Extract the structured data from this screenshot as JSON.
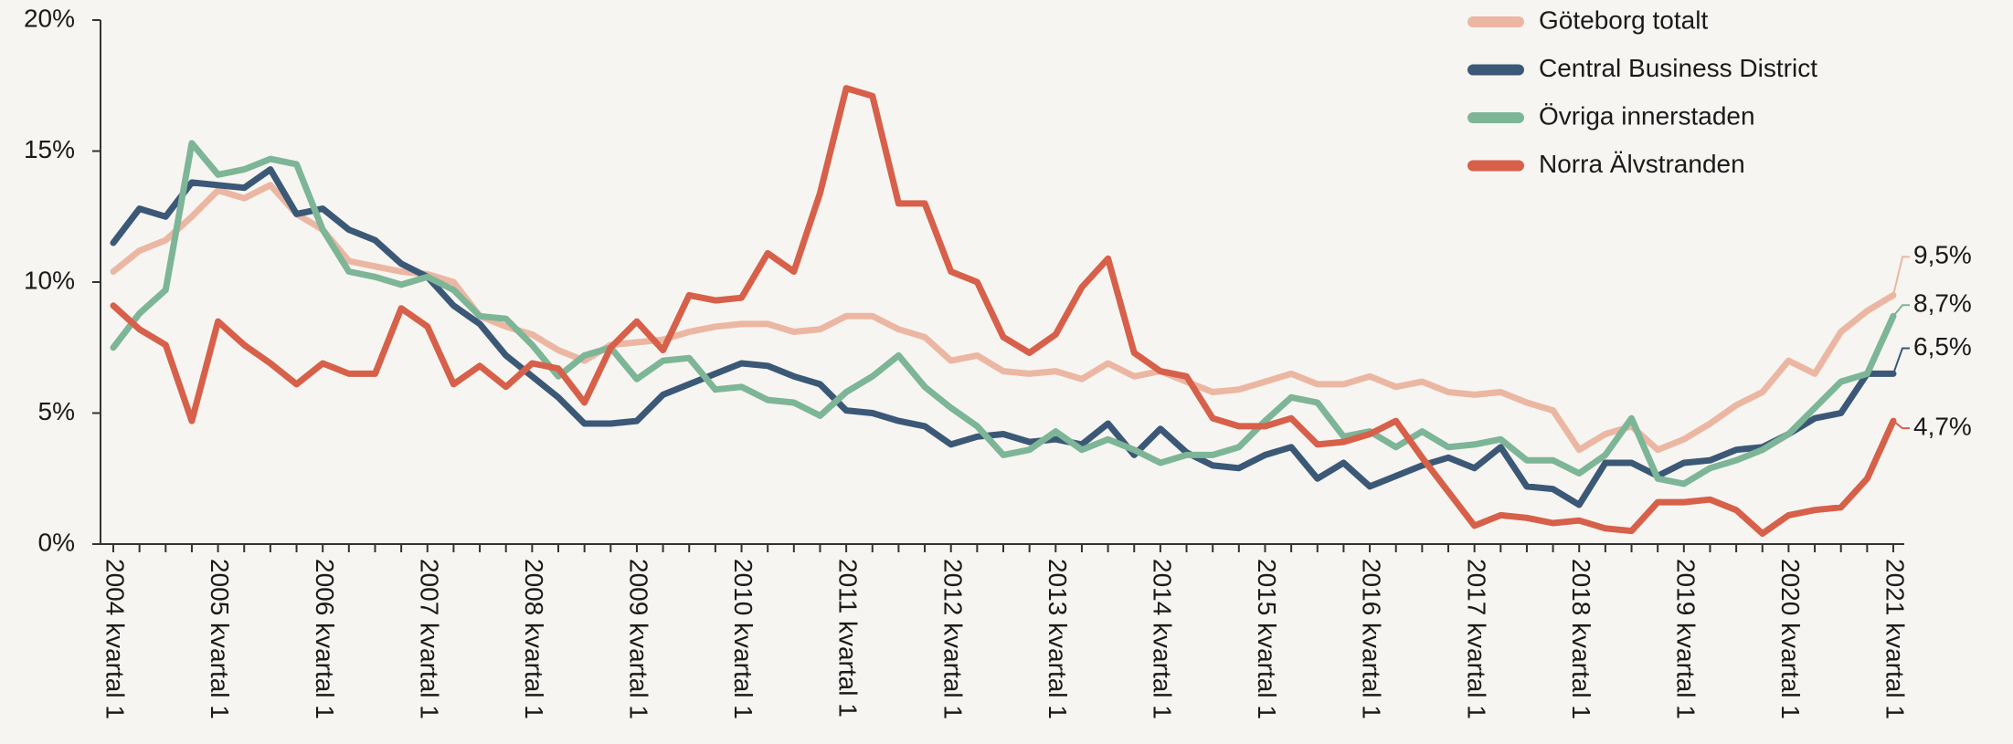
{
  "chart_data": {
    "type": "line",
    "categories": [
      "2004 kvartal 1",
      null,
      null,
      null,
      "2005 kvartal 1",
      null,
      null,
      null,
      "2006 kvartal 1",
      null,
      null,
      null,
      "2007 kvartal 1",
      null,
      null,
      null,
      "2008 kvartal 1",
      null,
      null,
      null,
      "2009 kvartal 1",
      null,
      null,
      null,
      "2010 kvartal 1",
      null,
      null,
      null,
      "2011 kvartal 1",
      null,
      null,
      null,
      "2012 kvartal 1",
      null,
      null,
      null,
      "2013 kvartal 1",
      null,
      null,
      null,
      "2014 kvartal 1",
      null,
      null,
      null,
      "2015 kvartal 1",
      null,
      null,
      null,
      "2016 kvartal 1",
      null,
      null,
      null,
      "2017 kvartal 1",
      null,
      null,
      null,
      "2018 kvartal 1",
      null,
      null,
      null,
      "2019 kvartal 1",
      null,
      null,
      null,
      "2020 kvartal 1",
      null,
      null,
      null,
      "2021 kvartal 1"
    ],
    "series": [
      {
        "name": "Göteborg totalt",
        "color": "#ebb7a3",
        "values": [
          10.4,
          11.2,
          11.6,
          12.5,
          13.5,
          13.2,
          13.7,
          12.6,
          12.0,
          10.8,
          10.6,
          10.4,
          10.3,
          10.0,
          8.7,
          8.3,
          8.0,
          7.4,
          7.0,
          7.6,
          7.7,
          7.8,
          8.1,
          8.3,
          8.4,
          8.4,
          8.1,
          8.2,
          8.7,
          8.7,
          8.2,
          7.9,
          7.0,
          7.2,
          6.6,
          6.5,
          6.6,
          6.3,
          6.9,
          6.4,
          6.6,
          6.2,
          5.8,
          5.9,
          6.2,
          6.5,
          6.1,
          6.1,
          6.4,
          6.0,
          6.2,
          5.8,
          5.7,
          5.8,
          5.4,
          5.1,
          3.6,
          4.2,
          4.5,
          3.6,
          4.0,
          4.6,
          5.3,
          5.8,
          7.0,
          6.5,
          8.1,
          8.9,
          9.5
        ],
        "value_labels": [
          null,
          null,
          null,
          null,
          null,
          null,
          null,
          null,
          null,
          null,
          null,
          null,
          null,
          null,
          null,
          null,
          null,
          null,
          null,
          null,
          null,
          null,
          null,
          null,
          null,
          null,
          null,
          null,
          null,
          null,
          null,
          null,
          null,
          null,
          null,
          null,
          null,
          null,
          null,
          null,
          null,
          null,
          null,
          null,
          null,
          null,
          null,
          null,
          null,
          null,
          null,
          null,
          null,
          null,
          null,
          null,
          null,
          null,
          null,
          null,
          null,
          null,
          null,
          null,
          null,
          null,
          null,
          null,
          "9,5%"
        ]
      },
      {
        "name": "Central Business District",
        "color": "#3b5877",
        "values": [
          11.5,
          12.8,
          12.5,
          13.8,
          13.7,
          13.6,
          14.3,
          12.6,
          12.8,
          12.0,
          11.6,
          10.7,
          10.2,
          9.1,
          8.4,
          7.2,
          6.4,
          5.6,
          4.6,
          4.6,
          4.7,
          5.7,
          6.1,
          6.5,
          6.9,
          6.8,
          6.4,
          6.1,
          5.1,
          5.0,
          4.7,
          4.5,
          3.8,
          4.1,
          4.2,
          3.9,
          4.0,
          3.8,
          4.6,
          3.4,
          4.4,
          3.5,
          3.0,
          2.9,
          3.4,
          3.7,
          2.5,
          3.1,
          2.2,
          2.6,
          3.0,
          3.3,
          2.9,
          3.7,
          2.2,
          2.1,
          1.5,
          3.1,
          3.1,
          2.6,
          3.1,
          3.2,
          3.6,
          3.7,
          4.2,
          4.8,
          5.0,
          6.5,
          6.5
        ],
        "value_labels": [
          null,
          null,
          null,
          null,
          null,
          null,
          null,
          null,
          null,
          null,
          null,
          null,
          null,
          null,
          null,
          null,
          null,
          null,
          null,
          null,
          null,
          null,
          null,
          null,
          null,
          null,
          null,
          null,
          null,
          null,
          null,
          null,
          null,
          null,
          null,
          null,
          null,
          null,
          null,
          null,
          null,
          null,
          null,
          null,
          null,
          null,
          null,
          null,
          null,
          null,
          null,
          null,
          null,
          null,
          null,
          null,
          null,
          null,
          null,
          null,
          null,
          null,
          null,
          null,
          null,
          null,
          null,
          null,
          "6,5%"
        ]
      },
      {
        "name": "Övriga innerstaden",
        "color": "#7db597",
        "values": [
          7.5,
          8.8,
          9.7,
          15.3,
          14.1,
          14.3,
          14.7,
          14.5,
          12.0,
          10.4,
          10.2,
          9.9,
          10.2,
          9.7,
          8.7,
          8.6,
          7.6,
          6.4,
          7.2,
          7.5,
          6.3,
          7.0,
          7.1,
          5.9,
          6.0,
          5.5,
          5.4,
          4.9,
          5.8,
          6.4,
          7.2,
          6.0,
          5.2,
          4.5,
          3.4,
          3.6,
          4.3,
          3.6,
          4.0,
          3.6,
          3.1,
          3.4,
          3.4,
          3.7,
          4.7,
          5.6,
          5.4,
          4.1,
          4.3,
          3.7,
          4.3,
          3.7,
          3.8,
          4.0,
          3.2,
          3.2,
          2.7,
          3.4,
          4.8,
          2.5,
          2.3,
          2.9,
          3.2,
          3.6,
          4.2,
          5.2,
          6.2,
          6.5,
          8.7
        ],
        "value_labels": [
          null,
          null,
          null,
          null,
          null,
          null,
          null,
          null,
          null,
          null,
          null,
          null,
          null,
          null,
          null,
          null,
          null,
          null,
          null,
          null,
          null,
          null,
          null,
          null,
          null,
          null,
          null,
          null,
          null,
          null,
          null,
          null,
          null,
          null,
          null,
          null,
          null,
          null,
          null,
          null,
          null,
          null,
          null,
          null,
          null,
          null,
          null,
          null,
          null,
          null,
          null,
          null,
          null,
          null,
          null,
          null,
          null,
          null,
          null,
          null,
          null,
          null,
          null,
          null,
          null,
          null,
          null,
          null,
          "8,7%"
        ]
      },
      {
        "name": "Norra Älvstranden",
        "color": "#d7604a",
        "values": [
          9.1,
          8.2,
          7.6,
          4.7,
          8.5,
          7.6,
          6.9,
          6.1,
          6.9,
          6.5,
          6.5,
          9.0,
          8.3,
          6.1,
          6.8,
          6.0,
          6.9,
          6.7,
          5.4,
          7.5,
          8.5,
          7.4,
          9.5,
          9.3,
          9.4,
          11.1,
          10.4,
          13.4,
          17.4,
          17.1,
          13.0,
          13.0,
          10.4,
          10.0,
          7.9,
          7.3,
          8.0,
          9.8,
          10.9,
          7.3,
          6.6,
          6.4,
          4.8,
          4.5,
          4.5,
          4.8,
          3.8,
          3.9,
          4.2,
          4.7,
          3.3,
          2.0,
          0.7,
          1.1,
          1.0,
          0.8,
          0.9,
          0.6,
          0.5,
          1.6,
          1.6,
          1.7,
          1.3,
          0.4,
          1.1,
          1.3,
          1.4,
          2.5,
          4.7
        ],
        "value_labels": [
          null,
          null,
          null,
          null,
          null,
          null,
          null,
          null,
          null,
          null,
          null,
          null,
          null,
          null,
          null,
          null,
          null,
          null,
          null,
          null,
          null,
          null,
          null,
          null,
          null,
          null,
          null,
          null,
          null,
          null,
          null,
          null,
          null,
          null,
          null,
          null,
          null,
          null,
          null,
          null,
          null,
          null,
          null,
          null,
          null,
          null,
          null,
          null,
          null,
          null,
          null,
          null,
          null,
          null,
          null,
          null,
          null,
          null,
          null,
          null,
          null,
          null,
          null,
          null,
          null,
          null,
          null,
          null,
          "4,7%"
        ]
      }
    ],
    "ylim": [
      0,
      20
    ],
    "yticks": [
      {
        "value": 0,
        "label": "0%"
      },
      {
        "value": 5,
        "label": "5%"
      },
      {
        "value": 10,
        "label": "10%"
      },
      {
        "value": 15,
        "label": "15%"
      },
      {
        "value": 20,
        "label": "20%"
      }
    ],
    "legend": "top-right"
  }
}
